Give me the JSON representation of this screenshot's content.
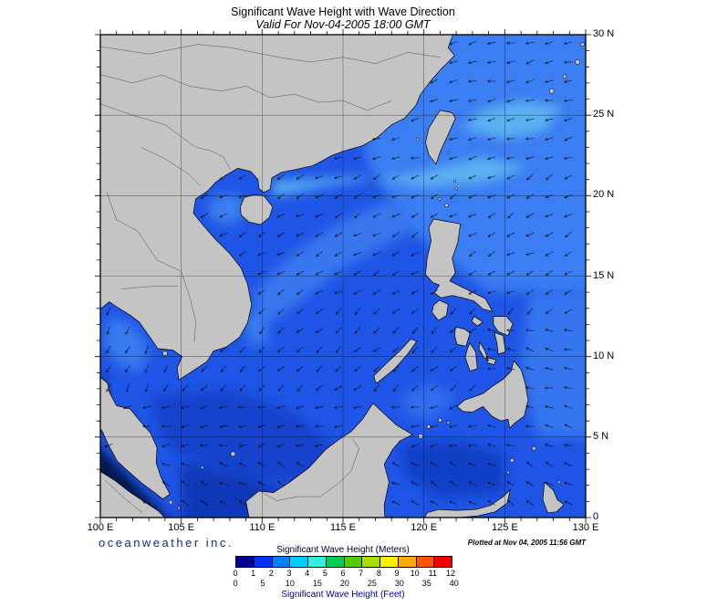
{
  "title": "Significant Wave Height with Wave Direction",
  "subtitle": "Valid For Nov-04-2005 18:00 GMT",
  "branding": {
    "credit": "oceanweather inc.",
    "plotted": "Plotted at Nov 04, 2005 11:56 GMT"
  },
  "axes": {
    "lat_labels": [
      "30 N",
      "25 N",
      "20 N",
      "15 N",
      "10 N",
      "5 N",
      "0"
    ],
    "lat_values": [
      30,
      25,
      20,
      15,
      10,
      5,
      0
    ],
    "lon_labels": [
      "100 E",
      "105 E",
      "110 E",
      "115 E",
      "120 E",
      "125 E",
      "130 E"
    ],
    "lon_values": [
      100,
      105,
      110,
      115,
      120,
      125,
      130
    ]
  },
  "legend": {
    "meters_label": "Significant Wave Height (Meters)",
    "feet_label": "Significant Wave Height (Feet)",
    "meters_ticks": [
      "0",
      "1",
      "2",
      "3",
      "4",
      "5",
      "6",
      "7",
      "8",
      "9",
      "10",
      "11",
      "12"
    ],
    "feet_ticks": [
      "0",
      "5",
      "10",
      "15",
      "20",
      "25",
      "30",
      "35",
      "40"
    ],
    "colors": [
      "#000099",
      "#0033ff",
      "#0080ff",
      "#00ccff",
      "#33eedd",
      "#00cc55",
      "#55cc00",
      "#aadd00",
      "#ffee00",
      "#ffaa00",
      "#ff5500",
      "#ee0000"
    ]
  },
  "map_colors": {
    "ocean_base": "#1f55e6",
    "land_fill": "#c4c4c4",
    "coastline": "#000000"
  }
}
